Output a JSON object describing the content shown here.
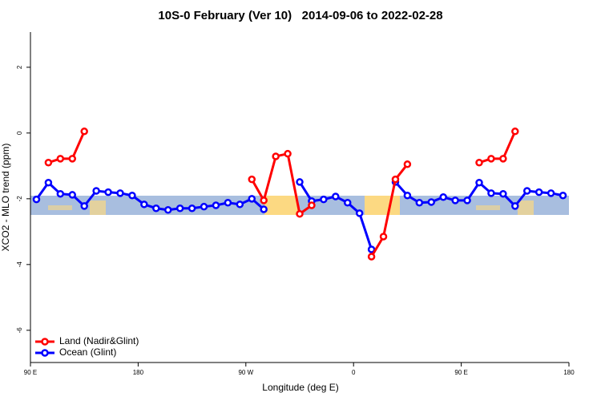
{
  "chart_data": {
    "type": "line",
    "title": "10S-0 February (Ver 10)   2014-09-06 to 2022-02-28",
    "xlabel": "Longitude (deg E)",
    "ylabel": "XCO2 - MLO trend (ppm)",
    "x": [
      95,
      105,
      115,
      125,
      135,
      145,
      155,
      165,
      175,
      185,
      195,
      205,
      215,
      225,
      235,
      245,
      255,
      265,
      275,
      285,
      295,
      305,
      315,
      325,
      335,
      345,
      355,
      365,
      375,
      385,
      395,
      405,
      415,
      425,
      435,
      445,
      455,
      465,
      475,
      485,
      495,
      505,
      515,
      525,
      535
    ],
    "series": [
      {
        "name": "Land (Nadir&Glint)",
        "color": "#ff0000",
        "values": [
          null,
          -0.9,
          -0.78,
          -0.78,
          0.05,
          null,
          null,
          null,
          null,
          null,
          null,
          null,
          null,
          null,
          null,
          null,
          null,
          null,
          -1.41,
          -2.05,
          -0.71,
          -0.63,
          -2.46,
          -2.2,
          null,
          null,
          null,
          null,
          -3.76,
          -3.15,
          -1.41,
          -0.95,
          null,
          null,
          null,
          null,
          null,
          -0.9,
          -0.78,
          -0.78,
          0.05,
          null,
          null,
          null,
          null
        ]
      },
      {
        "name": "Ocean (Glint)",
        "color": "#0000ff",
        "values": [
          -2.02,
          -1.51,
          -1.85,
          -1.88,
          -2.22,
          -1.76,
          -1.8,
          -1.83,
          -1.9,
          -2.17,
          -2.29,
          -2.34,
          -2.29,
          -2.29,
          -2.24,
          -2.2,
          -2.12,
          -2.17,
          -2.0,
          -2.32,
          null,
          null,
          -1.49,
          -2.07,
          -2.02,
          -1.93,
          -2.12,
          -2.44,
          -3.54,
          null,
          -1.49,
          -1.9,
          -2.12,
          -2.1,
          -1.95,
          -2.05,
          -2.05,
          -1.51,
          -1.83,
          -1.85,
          -2.22,
          -1.76,
          -1.8,
          -1.83,
          -1.9
        ]
      }
    ],
    "xlim": [
      90,
      540
    ],
    "xticks": [
      {
        "value": 90,
        "label": "90 E"
      },
      180,
      {
        "value": 270,
        "label": "90 W"
      },
      {
        "value": 360,
        "label": "0"
      },
      {
        "value": 450,
        "label": "90 E"
      },
      {
        "value": 540,
        "label": "180"
      }
    ],
    "ylim": [
      -6.98,
      3.07
    ],
    "yticks": [
      -6,
      -4,
      -2,
      0,
      2
    ],
    "legend": "bottom-left"
  }
}
